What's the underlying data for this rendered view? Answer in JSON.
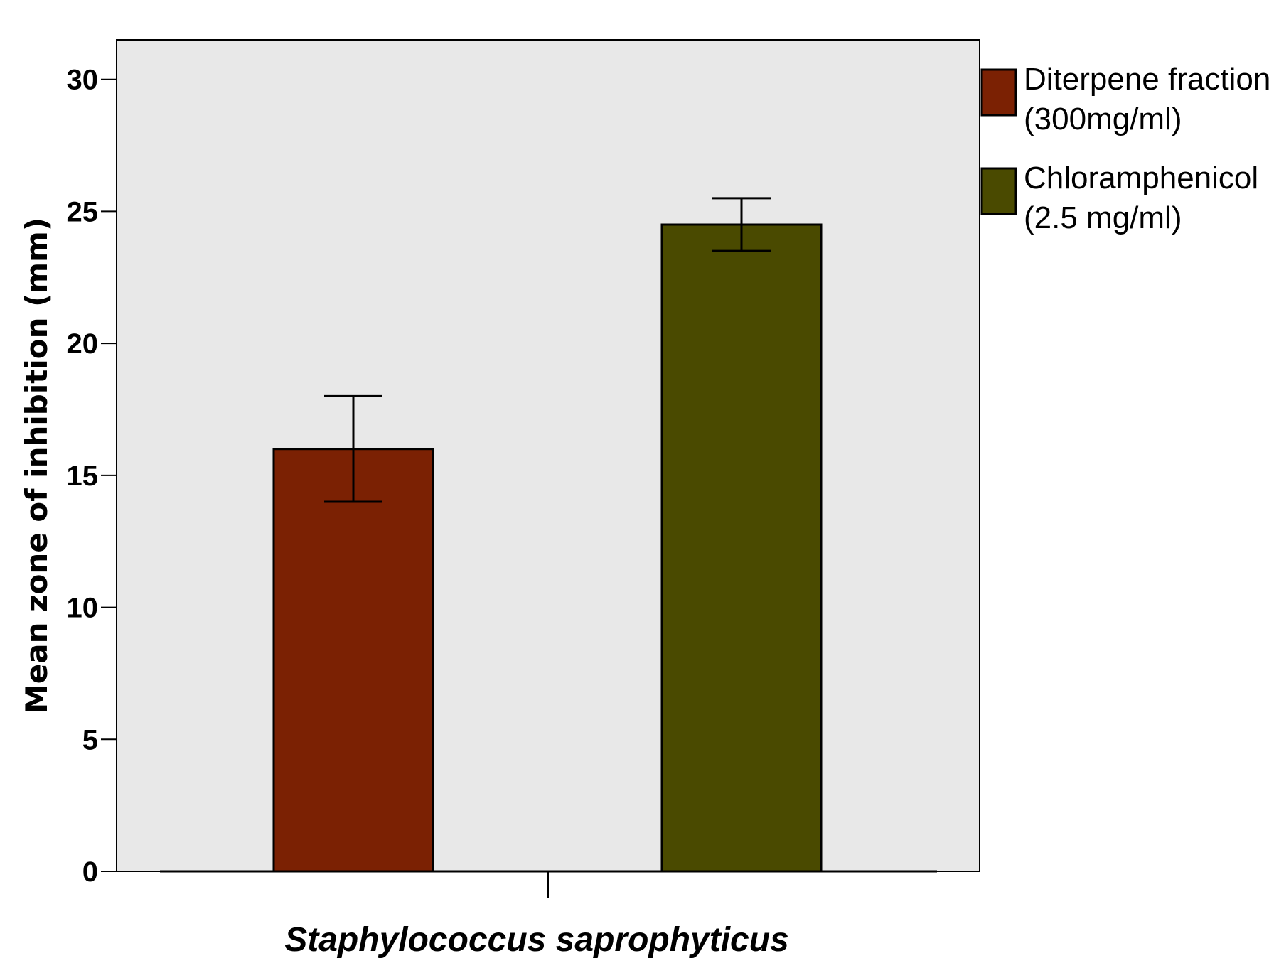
{
  "chart_data": {
    "type": "bar",
    "categories": [
      "Staphylococcus saprophyticus"
    ],
    "series": [
      {
        "name": "Diterpene fraction (300mg/ml)",
        "name_lines": [
          "Diterpene fraction",
          "(300mg/ml)"
        ],
        "values": [
          16
        ],
        "error_low": [
          14
        ],
        "error_high": [
          18
        ],
        "color": "#7b2103"
      },
      {
        "name": "Chloramphenicol (2.5 mg/ml)",
        "name_lines": [
          "Chloramphenicol",
          "(2.5 mg/ml)"
        ],
        "values": [
          24.5
        ],
        "error_low": [
          23.5
        ],
        "error_high": [
          25.5
        ],
        "color": "#4a4a00"
      }
    ],
    "title": "",
    "xlabel": "Staphylococcus saprophyticus",
    "ylabel": "Mean zone of inhibition (mm)",
    "ylim": [
      0,
      31.5
    ],
    "yticks": [
      0,
      5,
      10,
      15,
      20,
      25,
      30
    ],
    "ytick_labels": [
      "0",
      "5",
      "10",
      "15",
      "20",
      "25",
      "30"
    ],
    "grid": false,
    "legend": "right",
    "plot_background": "#e8e8e8"
  }
}
